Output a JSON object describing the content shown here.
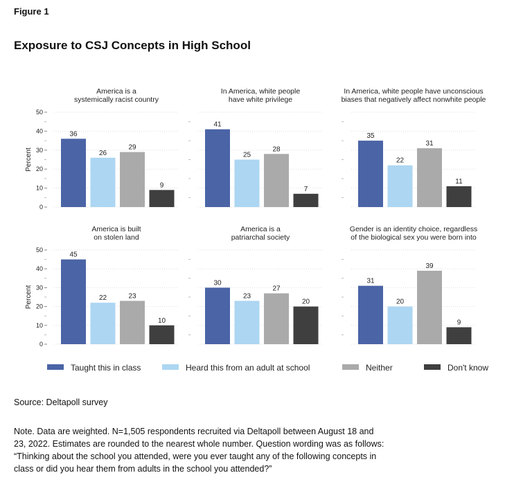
{
  "figure_label": "Figure 1",
  "title": "Exposure to CSJ Concepts in High School",
  "source": "Source: Deltapoll survey",
  "note": "Note. Data are weighted. N=1,505 respondents recruited via Deltapoll between August 18 and 23, 2022. Estimates are rounded to the nearest whole number. Question wording was as follows: “Thinking about the school you attended, were you ever taught any of the following concepts in class or did you hear them from adults in the school you attended?”",
  "chart_data": {
    "type": "bar",
    "ylabel": "Percent",
    "ylim": [
      0,
      50
    ],
    "yticks": [
      0,
      10,
      20,
      30,
      40,
      50
    ],
    "grid": true,
    "legend_position": "bottom",
    "series_names": [
      "Taught this in class",
      "Heard this from an adult at school",
      "Neither",
      "Don't know"
    ],
    "colors": [
      "#4a64a6",
      "#acd6f2",
      "#aaaaaa",
      "#3f3f3f"
    ],
    "panels": [
      {
        "title": [
          "America is a",
          "systemically racist country"
        ],
        "values": [
          36,
          26,
          29,
          9
        ]
      },
      {
        "title": [
          "In America, white people",
          "have white privilege"
        ],
        "values": [
          41,
          25,
          28,
          7
        ]
      },
      {
        "title": [
          "In America, white people have unconscious",
          "biases that negatively affect nonwhite people"
        ],
        "values": [
          35,
          22,
          31,
          11
        ]
      },
      {
        "title": [
          "America is built",
          "on stolen land"
        ],
        "values": [
          45,
          22,
          23,
          10
        ]
      },
      {
        "title": [
          "America is a",
          "patriarchal society"
        ],
        "values": [
          30,
          23,
          27,
          20
        ]
      },
      {
        "title": [
          "Gender is an identity choice, regardless",
          "of the biological sex you were born into"
        ],
        "values": [
          31,
          20,
          39,
          9
        ]
      }
    ]
  }
}
